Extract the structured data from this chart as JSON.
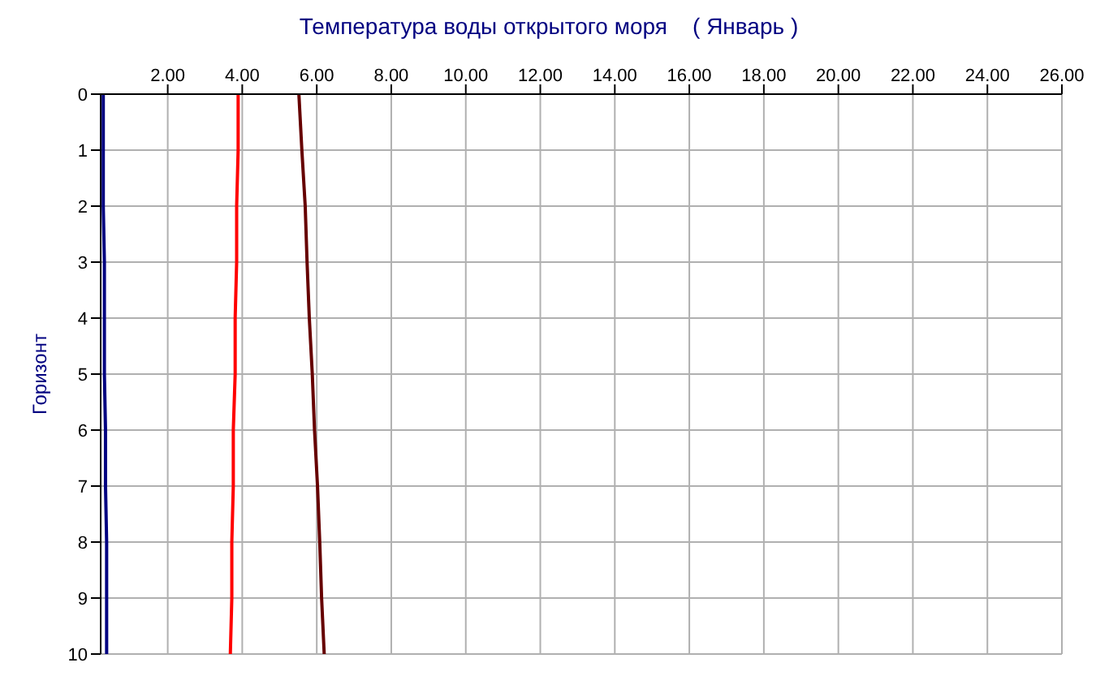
{
  "chart_data": {
    "type": "line",
    "title": "Температура воды открытого моря    ( Январь )",
    "ylabel": "Горизонт",
    "xlim": [
      0.2,
      26
    ],
    "xticks": [
      {
        "value": 2,
        "label": "2.00"
      },
      {
        "value": 4,
        "label": "4.00"
      },
      {
        "value": 6,
        "label": "6.00"
      },
      {
        "value": 8,
        "label": "8.00"
      },
      {
        "value": 10,
        "label": "10.00"
      },
      {
        "value": 12,
        "label": "12.00"
      },
      {
        "value": 14,
        "label": "14.00"
      },
      {
        "value": 16,
        "label": "16.00"
      },
      {
        "value": 18,
        "label": "18.00"
      },
      {
        "value": 20,
        "label": "20.00"
      },
      {
        "value": 22,
        "label": "22.00"
      },
      {
        "value": 24,
        "label": "24.00"
      },
      {
        "value": 26,
        "label": "26.00"
      }
    ],
    "ylim": [
      10,
      0
    ],
    "yticks": [
      0,
      1,
      2,
      3,
      4,
      5,
      6,
      7,
      8,
      9,
      10
    ],
    "grid": true,
    "marker": "none",
    "line_style": "solid",
    "series": [
      {
        "color": "#000080",
        "x": [
          0.27,
          0.27,
          0.27,
          0.3,
          0.3,
          0.3,
          0.33,
          0.33,
          0.36,
          0.36,
          0.36
        ],
        "values": [
          0,
          1,
          2,
          3,
          4,
          5,
          6,
          7,
          8,
          9,
          10
        ]
      },
      {
        "color": "#ff0000",
        "x": [
          3.89,
          3.89,
          3.85,
          3.85,
          3.81,
          3.81,
          3.76,
          3.76,
          3.72,
          3.72,
          3.68
        ],
        "values": [
          0,
          1,
          2,
          3,
          4,
          5,
          6,
          7,
          8,
          9,
          10
        ]
      },
      {
        "color": "#660000",
        "x": [
          5.52,
          5.6,
          5.69,
          5.74,
          5.8,
          5.88,
          5.94,
          6.02,
          6.08,
          6.13,
          6.2
        ],
        "values": [
          0,
          1,
          2,
          3,
          4,
          5,
          6,
          7,
          8,
          9,
          10
        ]
      }
    ]
  }
}
